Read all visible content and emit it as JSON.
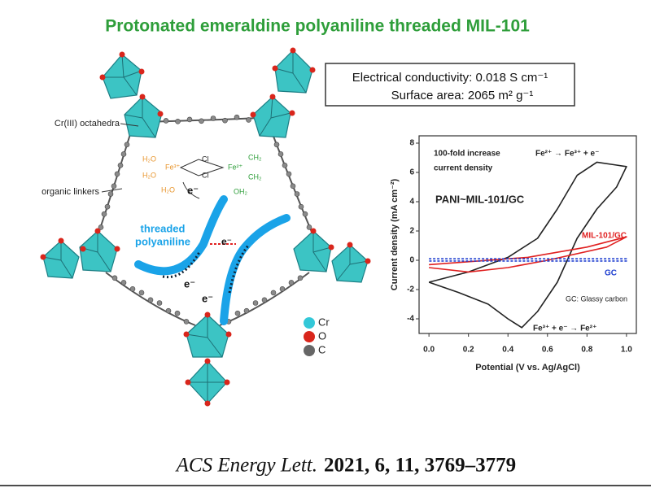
{
  "header": {
    "title": "Protonated emeraldine polyaniline threaded MIL-101"
  },
  "structure": {
    "labels": [
      "Cr(III) octahedra",
      "organic linkers"
    ],
    "threaded": [
      "threaded",
      "polyaniline"
    ],
    "electrons": [
      "e⁻",
      "e⁻",
      "e⁻",
      "e⁻"
    ],
    "complex": [
      "H₂O",
      "Fe³⁺",
      "Cl",
      "Cl",
      "Fe²⁺",
      "CH₂",
      "CH₂",
      "H₂O",
      "H₂O",
      "OH₂"
    ],
    "legend": [
      "Cr",
      "O",
      "C"
    ]
  },
  "info_box": [
    "Electrical conductivity: 0.018 S cm⁻¹",
    "Surface area: 2065 m² g⁻¹"
  ],
  "chart_data": {
    "type": "line",
    "x_label": "Potential (V vs. Ag/AgCl)",
    "y_label": "Current density (mA cm⁻²)",
    "xlim": [
      -0.05,
      1.05
    ],
    "ylim": [
      -5,
      8.5
    ],
    "xticks": [
      {
        "value": 0,
        "label": "0.0"
      },
      {
        "value": 0.2,
        "label": "0.2"
      },
      {
        "value": 0.4,
        "label": "0.4"
      },
      {
        "value": 0.6,
        "label": "0.6"
      },
      {
        "value": 0.8,
        "label": "0.8"
      },
      {
        "value": 1,
        "label": "1.0"
      }
    ],
    "yticks": [
      -4,
      -2,
      0,
      2,
      4,
      6,
      8
    ],
    "annotations": [
      "100-fold increase",
      "current density",
      "Fe²⁺ → Fe³⁺ + e⁻",
      "GC: Glassy carbon",
      "Fe³⁺ + e⁻ → Fe²⁺"
    ],
    "series": [
      {
        "name": "PANI~MIL-101/GC",
        "color": "#222222",
        "x": [
          0,
          0.2,
          0.4,
          0.55,
          0.65,
          0.75,
          0.85,
          0.95,
          1.0,
          0.95,
          0.85,
          0.75,
          0.65,
          0.55,
          0.47,
          0.4,
          0.3,
          0.15,
          0
        ],
        "values": [
          -1.5,
          -0.8,
          0.2,
          1.5,
          3.5,
          5.8,
          6.7,
          6.5,
          6.4,
          5.0,
          3.5,
          1.5,
          -1.5,
          -3.5,
          -4.6,
          -4.0,
          -3.0,
          -2.2,
          -1.5
        ]
      },
      {
        "name": "MIL-101/GC",
        "color": "#e02020",
        "x": [
          0,
          0.5,
          0.8,
          1.0,
          0.9,
          0.6,
          0.4,
          0.2,
          0
        ],
        "values": [
          -0.3,
          0.2,
          0.9,
          1.6,
          0.9,
          0.0,
          -0.5,
          -0.8,
          -0.5
        ]
      },
      {
        "name": "GC",
        "color": "#2040d0",
        "dashed": true,
        "x": [
          0,
          1.0,
          1.0,
          0
        ],
        "values": [
          0.1,
          0.1,
          -0.05,
          -0.05
        ]
      }
    ]
  },
  "footer": {
    "journal": "ACS Energy Lett.",
    "citation": "2021, 6, 11, 3769–3779"
  }
}
